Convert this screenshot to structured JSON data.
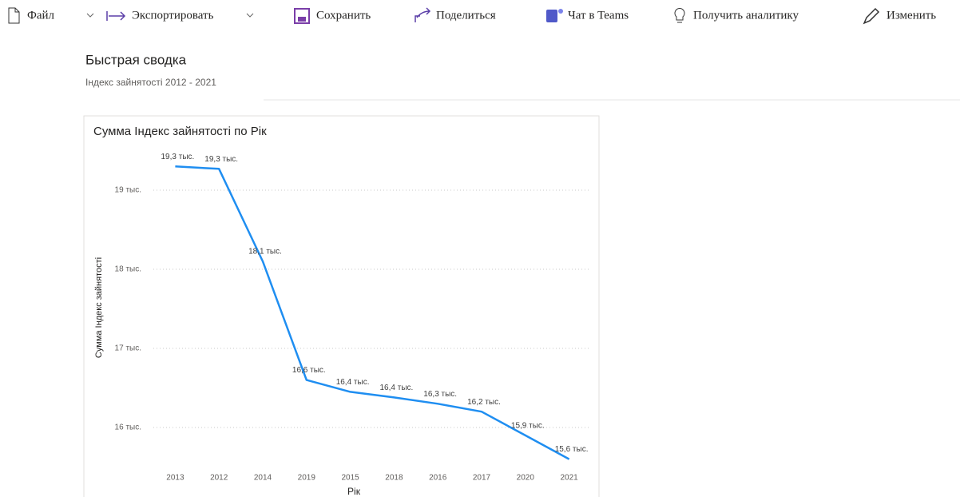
{
  "toolbar": {
    "items": [
      "Файл",
      "Экспортировать",
      "Сохранить",
      "Поделиться",
      "Чат в Teams",
      "Получить аналитику",
      "Изменить"
    ]
  },
  "header": {
    "title": "Быстрая сводка",
    "subtitle": "Індекс зайнятості 2012 - 2021"
  },
  "chart_data": {
    "type": "line",
    "title": "Сумма Індекс зайнятості по Рік",
    "x_label": "Рік",
    "y_label": "Сумма Індекс зайнятості",
    "categories": [
      "2013",
      "2012",
      "2014",
      "2019",
      "2015",
      "2018",
      "2016",
      "2017",
      "2020",
      "2021"
    ],
    "values": [
      19300,
      19270,
      18100,
      16600,
      16450,
      16380,
      16300,
      16200,
      15900,
      15600
    ],
    "value_labels": [
      "19,3 тыс.",
      "19,3 тыс.",
      "18,1 тыс.",
      "16,6 тыс.",
      "16,4 тыс.",
      "16,4 тыс.",
      "16,3 тыс.",
      "16,2 тыс.",
      "15,9 тыс.",
      "15,6 тыс."
    ],
    "color": "#1f8ef1",
    "ylim": [
      15500,
      19500
    ],
    "yticks": [
      {
        "value": 16000,
        "label": "16 тыс."
      },
      {
        "value": 17000,
        "label": "17 тыс."
      },
      {
        "value": 18000,
        "label": "18 тыс."
      },
      {
        "value": 19000,
        "label": "19 тыс."
      }
    ],
    "grid": true
  }
}
